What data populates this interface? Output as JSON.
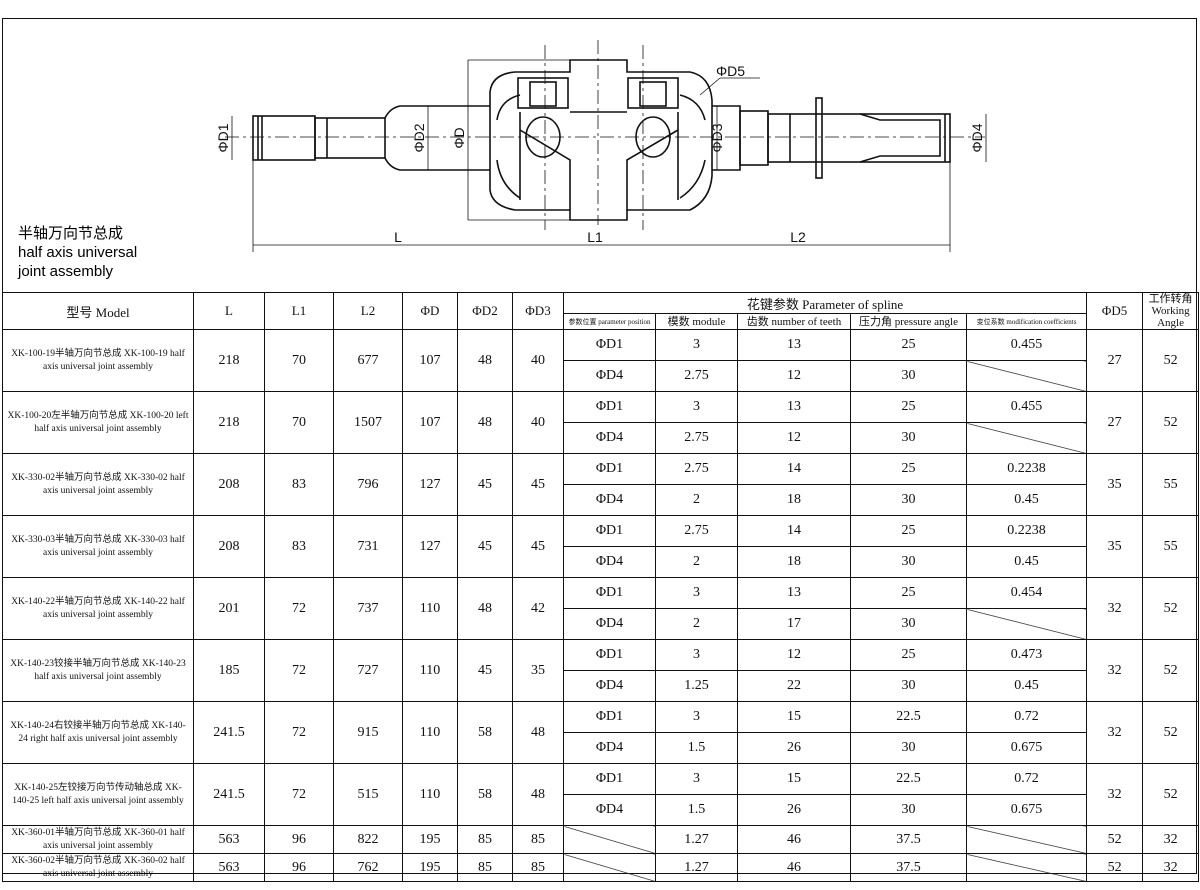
{
  "drawing": {
    "caption_cn": "半轴万向节总成",
    "caption_en_1": "half axis universal",
    "caption_en_2": "joint assembly",
    "labels": {
      "d1": "ΦD1",
      "d2": "ΦD2",
      "d": "ΦD",
      "d3": "ΦD3",
      "d4": "ΦD4",
      "d5": "ΦD5",
      "l": "L",
      "l1": "L1",
      "l2": "L2"
    }
  },
  "table": {
    "headers": {
      "model": "型号 Model",
      "l": "L",
      "l1": "L1",
      "l2": "L2",
      "d": "ΦD",
      "d2": "ΦD2",
      "d3": "ΦD3",
      "spline": "花键参数 Parameter of spline",
      "position": "参数位置 parameter position",
      "module": "模数 module",
      "teeth": "齿数 number of teeth",
      "angle": "压力角 pressure angle",
      "coeff": "变位系数 modification coefficients",
      "d5": "ΦD5",
      "working_angle": "工作转角 Working Angle"
    },
    "rows": [
      {
        "model": "XK-100-19半轴万向节总成 XK-100-19 half axis universal joint assembly",
        "l": "218",
        "l1": "70",
        "l2": "677",
        "d": "107",
        "d2": "48",
        "d3": "40",
        "d5": "27",
        "wa": "52",
        "spline": [
          {
            "pos": "ΦD1",
            "module": "3",
            "teeth": "13",
            "angle": "25",
            "coeff": "0.455"
          },
          {
            "pos": "ΦD4",
            "module": "2.75",
            "teeth": "12",
            "angle": "30",
            "coeff": null
          }
        ]
      },
      {
        "model": "XK-100-20左半轴万向节总成 XK-100-20 left half axis universal joint assembly",
        "l": "218",
        "l1": "70",
        "l2": "1507",
        "d": "107",
        "d2": "48",
        "d3": "40",
        "d5": "27",
        "wa": "52",
        "spline": [
          {
            "pos": "ΦD1",
            "module": "3",
            "teeth": "13",
            "angle": "25",
            "coeff": "0.455"
          },
          {
            "pos": "ΦD4",
            "module": "2.75",
            "teeth": "12",
            "angle": "30",
            "coeff": null
          }
        ]
      },
      {
        "model": "XK-330-02半轴万向节总成 XK-330-02 half axis universal joint assembly",
        "l": "208",
        "l1": "83",
        "l2": "796",
        "d": "127",
        "d2": "45",
        "d3": "45",
        "d5": "35",
        "wa": "55",
        "spline": [
          {
            "pos": "ΦD1",
            "module": "2.75",
            "teeth": "14",
            "angle": "25",
            "coeff": "0.2238"
          },
          {
            "pos": "ΦD4",
            "module": "2",
            "teeth": "18",
            "angle": "30",
            "coeff": "0.45"
          }
        ]
      },
      {
        "model": "XK-330-03半轴万向节总成 XK-330-03 half axis universal joint assembly",
        "l": "208",
        "l1": "83",
        "l2": "731",
        "d": "127",
        "d2": "45",
        "d3": "45",
        "d5": "35",
        "wa": "55",
        "spline": [
          {
            "pos": "ΦD1",
            "module": "2.75",
            "teeth": "14",
            "angle": "25",
            "coeff": "0.2238"
          },
          {
            "pos": "ΦD4",
            "module": "2",
            "teeth": "18",
            "angle": "30",
            "coeff": "0.45"
          }
        ]
      },
      {
        "model": "XK-140-22半轴万向节总成 XK-140-22 half axis universal joint assembly",
        "l": "201",
        "l1": "72",
        "l2": "737",
        "d": "110",
        "d2": "48",
        "d3": "42",
        "d5": "32",
        "wa": "52",
        "spline": [
          {
            "pos": "ΦD1",
            "module": "3",
            "teeth": "13",
            "angle": "25",
            "coeff": "0.454"
          },
          {
            "pos": "ΦD4",
            "module": "2",
            "teeth": "17",
            "angle": "30",
            "coeff": null
          }
        ]
      },
      {
        "model": "XK-140-23铰接半轴万向节总成 XK-140-23 half axis universal joint assembly",
        "l": "185",
        "l1": "72",
        "l2": "727",
        "d": "110",
        "d2": "45",
        "d3": "35",
        "d5": "32",
        "wa": "52",
        "spline": [
          {
            "pos": "ΦD1",
            "module": "3",
            "teeth": "12",
            "angle": "25",
            "coeff": "0.473"
          },
          {
            "pos": "ΦD4",
            "module": "1.25",
            "teeth": "22",
            "angle": "30",
            "coeff": "0.45"
          }
        ]
      },
      {
        "model": "XK-140-24右铰接半轴万向节总成 XK-140-24 right half axis universal joint assembly",
        "l": "241.5",
        "l1": "72",
        "l2": "915",
        "d": "110",
        "d2": "58",
        "d3": "48",
        "d5": "32",
        "wa": "52",
        "spline": [
          {
            "pos": "ΦD1",
            "module": "3",
            "teeth": "15",
            "angle": "22.5",
            "coeff": "0.72"
          },
          {
            "pos": "ΦD4",
            "module": "1.5",
            "teeth": "26",
            "angle": "30",
            "coeff": "0.675"
          }
        ]
      },
      {
        "model": "XK-140-25左铰接万向节传动轴总成 XK-140-25 left half axis universal joint assembly",
        "l": "241.5",
        "l1": "72",
        "l2": "515",
        "d": "110",
        "d2": "58",
        "d3": "48",
        "d5": "32",
        "wa": "52",
        "spline": [
          {
            "pos": "ΦD1",
            "module": "3",
            "teeth": "15",
            "angle": "22.5",
            "coeff": "0.72"
          },
          {
            "pos": "ΦD4",
            "module": "1.5",
            "teeth": "26",
            "angle": "30",
            "coeff": "0.675"
          }
        ]
      },
      {
        "model": "XK-360-01半轴万向节总成 XK-360-01 half axis universal joint assembly",
        "l": "563",
        "l1": "96",
        "l2": "822",
        "d": "195",
        "d2": "85",
        "d3": "85",
        "d5": "52",
        "wa": "32",
        "spline": [
          {
            "pos": null,
            "module": "1.27",
            "teeth": "46",
            "angle": "37.5",
            "coeff": null
          }
        ]
      },
      {
        "model": "XK-360-02半轴万向节总成 XK-360-02 half axis universal joint assembly",
        "l": "563",
        "l1": "96",
        "l2": "762",
        "d": "195",
        "d2": "85",
        "d3": "85",
        "d5": "52",
        "wa": "32",
        "spline": [
          {
            "pos": null,
            "module": "1.27",
            "teeth": "46",
            "angle": "37.5",
            "coeff": null
          }
        ]
      }
    ]
  }
}
